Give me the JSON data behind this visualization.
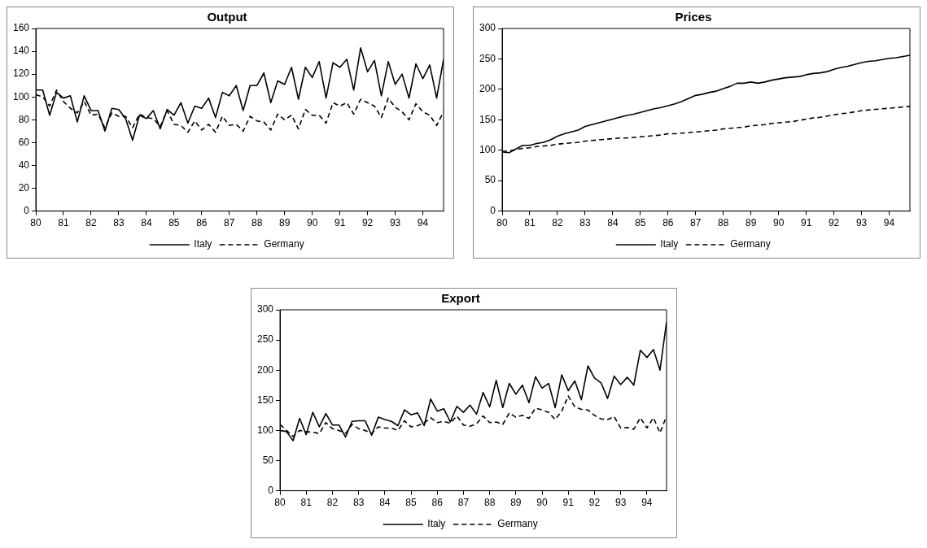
{
  "chart_data": [
    {
      "type": "line",
      "title": "Output",
      "x": [
        80,
        80.25,
        80.5,
        80.75,
        81,
        81.25,
        81.5,
        81.75,
        82,
        82.25,
        82.5,
        82.75,
        83,
        83.25,
        83.5,
        83.75,
        84,
        84.25,
        84.5,
        84.75,
        85,
        85.25,
        85.5,
        85.75,
        86,
        86.25,
        86.5,
        86.75,
        87,
        87.25,
        87.5,
        87.75,
        88,
        88.25,
        88.5,
        88.75,
        89,
        89.25,
        89.5,
        89.75,
        90,
        90.25,
        90.5,
        90.75,
        91,
        91.25,
        91.5,
        91.75,
        92,
        92.25,
        92.5,
        92.75,
        93,
        93.25,
        93.5,
        93.75,
        94,
        94.25,
        94.5,
        94.75
      ],
      "xlim": [
        80,
        94.75
      ],
      "xticks": [
        80,
        81,
        82,
        83,
        84,
        85,
        86,
        87,
        88,
        89,
        90,
        91,
        92,
        93,
        94
      ],
      "ylim": [
        0,
        160
      ],
      "yticks": [
        0,
        20,
        40,
        60,
        80,
        100,
        120,
        140,
        160
      ],
      "grid": false,
      "legend": "bottom",
      "series": [
        {
          "name": "Italy",
          "color": "#000000",
          "line_style": "solid",
          "values": [
            106,
            106,
            84,
            104,
            99,
            101,
            78,
            101,
            88,
            88,
            70,
            90,
            89,
            81,
            62,
            84,
            81,
            88,
            72,
            89,
            84,
            95,
            77,
            92,
            90,
            99,
            82,
            104,
            101,
            110,
            88,
            110,
            110,
            121,
            95,
            114,
            111,
            126,
            98,
            126,
            117,
            131,
            99,
            130,
            126,
            133,
            106,
            143,
            122,
            132,
            101,
            131,
            111,
            120,
            99,
            129,
            116,
            128,
            99,
            133
          ]
        },
        {
          "name": "Germany",
          "color": "#000000",
          "line_style": "dashed",
          "values": [
            102,
            100,
            92,
            106,
            96,
            90,
            86,
            96,
            84,
            85,
            73,
            86,
            83,
            83,
            73,
            85,
            82,
            81,
            74,
            88,
            76,
            75,
            69,
            79,
            71,
            76,
            69,
            83,
            75,
            76,
            70,
            83,
            79,
            78,
            71,
            85,
            80,
            84,
            72,
            89,
            84,
            84,
            77,
            95,
            92,
            95,
            85,
            98,
            95,
            92,
            82,
            99,
            91,
            87,
            80,
            94,
            87,
            84,
            75,
            87
          ]
        }
      ]
    },
    {
      "type": "line",
      "title": "Prices",
      "x": [
        80,
        80.25,
        80.5,
        80.75,
        81,
        81.25,
        81.5,
        81.75,
        82,
        82.25,
        82.5,
        82.75,
        83,
        83.25,
        83.5,
        83.75,
        84,
        84.25,
        84.5,
        84.75,
        85,
        85.25,
        85.5,
        85.75,
        86,
        86.25,
        86.5,
        86.75,
        87,
        87.25,
        87.5,
        87.75,
        88,
        88.25,
        88.5,
        88.75,
        89,
        89.25,
        89.5,
        89.75,
        90,
        90.25,
        90.5,
        90.75,
        91,
        91.25,
        91.5,
        91.75,
        92,
        92.25,
        92.5,
        92.75,
        93,
        93.25,
        93.5,
        93.75,
        94,
        94.25,
        94.5,
        94.75
      ],
      "xlim": [
        80,
        94.75
      ],
      "xticks": [
        80,
        81,
        82,
        83,
        84,
        85,
        86,
        87,
        88,
        89,
        90,
        91,
        92,
        93,
        94
      ],
      "ylim": [
        0,
        300
      ],
      "yticks": [
        0,
        50,
        100,
        150,
        200,
        250,
        300
      ],
      "grid": false,
      "legend": "bottom",
      "series": [
        {
          "name": "Italy",
          "color": "#000000",
          "line_style": "solid",
          "values": [
            97,
            96,
            102,
            108,
            108,
            111,
            113,
            117,
            123,
            127,
            130,
            133,
            139,
            142,
            145,
            148,
            151,
            154,
            157,
            159,
            162,
            165,
            168,
            170,
            173,
            176,
            180,
            185,
            190,
            192,
            195,
            197,
            201,
            205,
            210,
            210,
            212,
            210,
            212,
            215,
            217,
            219,
            220,
            221,
            224,
            226,
            227,
            229,
            233,
            236,
            238,
            241,
            244,
            246,
            247,
            249,
            251,
            252,
            254,
            256
          ]
        },
        {
          "name": "Germany",
          "color": "#000000",
          "line_style": "dashed",
          "values": [
            98,
            99,
            101,
            103,
            104,
            106,
            107,
            108,
            110,
            111,
            112,
            113,
            115,
            116,
            117,
            118,
            119,
            120,
            120,
            121,
            122,
            123,
            124,
            125,
            127,
            127,
            128,
            129,
            130,
            131,
            132,
            133,
            135,
            136,
            137,
            138,
            140,
            141,
            142,
            144,
            145,
            146,
            147,
            149,
            151,
            153,
            154,
            156,
            158,
            160,
            161,
            163,
            165,
            166,
            167,
            168,
            169,
            170,
            171,
            172
          ]
        }
      ]
    },
    {
      "type": "line",
      "title": "Export",
      "x": [
        80,
        80.25,
        80.5,
        80.75,
        81,
        81.25,
        81.5,
        81.75,
        82,
        82.25,
        82.5,
        82.75,
        83,
        83.25,
        83.5,
        83.75,
        84,
        84.25,
        84.5,
        84.75,
        85,
        85.25,
        85.5,
        85.75,
        86,
        86.25,
        86.5,
        86.75,
        87,
        87.25,
        87.5,
        87.75,
        88,
        88.25,
        88.5,
        88.75,
        89,
        89.25,
        89.5,
        89.75,
        90,
        90.25,
        90.5,
        90.75,
        91,
        91.25,
        91.5,
        91.75,
        92,
        92.25,
        92.5,
        92.75,
        93,
        93.25,
        93.5,
        93.75,
        94,
        94.25,
        94.5,
        94.75
      ],
      "xlim": [
        80,
        94.75
      ],
      "xticks": [
        80,
        81,
        82,
        83,
        84,
        85,
        86,
        87,
        88,
        89,
        90,
        91,
        92,
        93,
        94
      ],
      "ylim": [
        0,
        300
      ],
      "yticks": [
        0,
        50,
        100,
        150,
        200,
        250,
        300
      ],
      "grid": false,
      "legend": "bottom",
      "series": [
        {
          "name": "Italy",
          "color": "#000000",
          "line_style": "solid",
          "values": [
            100,
            98,
            83,
            120,
            93,
            130,
            106,
            128,
            109,
            109,
            89,
            115,
            116,
            116,
            92,
            122,
            118,
            115,
            108,
            134,
            126,
            129,
            108,
            152,
            132,
            136,
            114,
            140,
            130,
            142,
            127,
            163,
            139,
            183,
            138,
            178,
            160,
            175,
            146,
            189,
            170,
            178,
            138,
            192,
            166,
            182,
            151,
            207,
            187,
            179,
            153,
            190,
            176,
            188,
            175,
            233,
            221,
            234,
            200,
            280
          ]
        },
        {
          "name": "Germany",
          "color": "#000000",
          "line_style": "dashed",
          "values": [
            110,
            100,
            90,
            100,
            98,
            97,
            95,
            113,
            103,
            100,
            95,
            110,
            103,
            100,
            95,
            106,
            104,
            104,
            100,
            116,
            106,
            108,
            112,
            121,
            113,
            115,
            112,
            124,
            109,
            107,
            111,
            124,
            113,
            114,
            110,
            129,
            122,
            125,
            120,
            137,
            134,
            130,
            118,
            132,
            157,
            139,
            135,
            134,
            125,
            119,
            118,
            123,
            104,
            105,
            102,
            121,
            104,
            121,
            96,
            124
          ]
        }
      ]
    }
  ]
}
